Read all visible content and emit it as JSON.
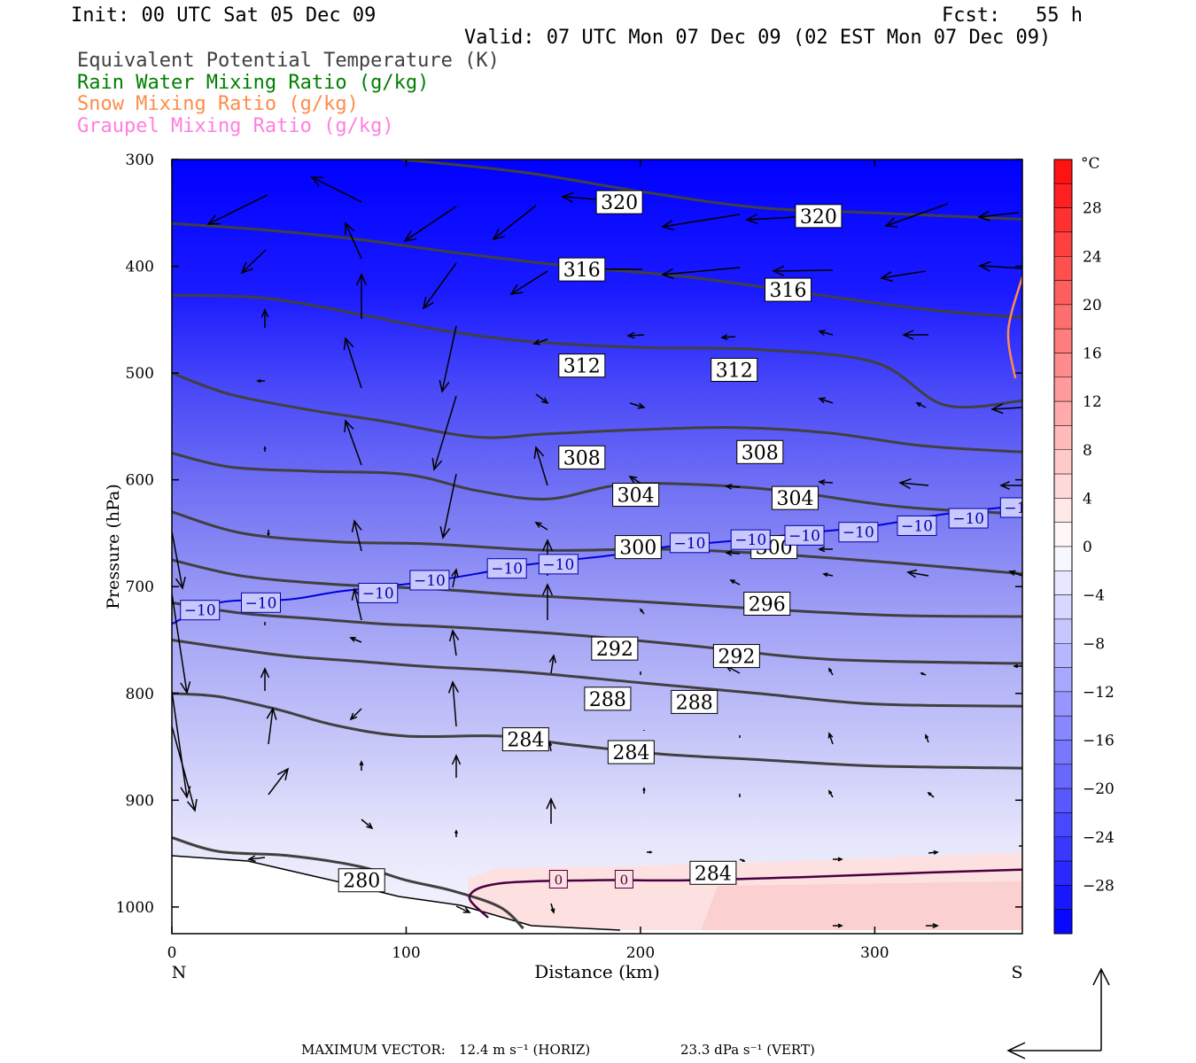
{
  "header": {
    "init": "Init: 00 UTC Sat 05 Dec 09",
    "fcst": "Fcst:   55 h",
    "valid": "Valid: 07 UTC Mon 07 Dec 09 (02 EST Mon 07 Dec 09)"
  },
  "legend": [
    {
      "label": "Equivalent Potential Temperature (K)",
      "color": "#404040"
    },
    {
      "label": "Rain Water Mixing Ratio (g/kg)",
      "color": "#008000"
    },
    {
      "label": "Snow Mixing Ratio (g/kg)",
      "color": "#ff8c4a"
    },
    {
      "label": "Graupel Mixing Ratio (g/kg)",
      "color": "#ff7fe0"
    }
  ],
  "footer": {
    "max_vector_label": "MAXIMUM VECTOR:",
    "horiz": "12.4 m s⁻¹ (HORIZ)",
    "vert": "23.3 dPa s⁻¹ (VERT)"
  },
  "chart_data": {
    "type": "contour",
    "xlabel": "Distance (km)",
    "ylabel": "Pressure (hPa)",
    "xlim": [
      0,
      363
    ],
    "ylim": [
      300,
      1025
    ],
    "x_ticks": [
      "0",
      "100",
      "200",
      "300"
    ],
    "y_ticks": [
      "300",
      "400",
      "500",
      "600",
      "700",
      "800",
      "900",
      "1000"
    ],
    "x_end_labels": {
      "left": "N",
      "right": "S"
    },
    "colorbar": {
      "unit": "°C",
      "ticks": [
        "28",
        "24",
        "20",
        "16",
        "12",
        "8",
        "4",
        "0",
        "−4",
        "−8",
        "−12",
        "−16",
        "−20",
        "−24",
        "−28"
      ],
      "range": [
        -32,
        32
      ]
    },
    "theta_e_contours": [
      {
        "value": 280,
        "labels": [
          [
            81,
            975
          ]
        ],
        "points": [
          [
            0,
            935
          ],
          [
            20,
            948
          ],
          [
            50,
            952
          ],
          [
            80,
            962
          ],
          [
            100,
            975
          ],
          [
            120,
            985
          ],
          [
            140,
            1000
          ],
          [
            150,
            1020
          ]
        ]
      },
      {
        "value": 284,
        "labels": [
          [
            151,
            843
          ],
          [
            196,
            855
          ],
          [
            231,
            968
          ]
        ],
        "points": [
          [
            0,
            800
          ],
          [
            20,
            803
          ],
          [
            45,
            815
          ],
          [
            70,
            830
          ],
          [
            100,
            840
          ],
          [
            140,
            840
          ],
          [
            170,
            848
          ],
          [
            210,
            857
          ],
          [
            250,
            862
          ],
          [
            300,
            868
          ],
          [
            363,
            870
          ]
        ]
      },
      {
        "value": 288,
        "labels": [
          [
            186,
            805
          ],
          [
            223,
            808
          ]
        ],
        "points": [
          [
            0,
            750
          ],
          [
            25,
            758
          ],
          [
            50,
            765
          ],
          [
            80,
            770
          ],
          [
            110,
            775
          ],
          [
            150,
            780
          ],
          [
            200,
            790
          ],
          [
            250,
            800
          ],
          [
            300,
            810
          ],
          [
            363,
            812
          ]
        ]
      },
      {
        "value": 292,
        "labels": [
          [
            189,
            758
          ],
          [
            241,
            765
          ]
        ],
        "points": [
          [
            0,
            715
          ],
          [
            30,
            725
          ],
          [
            60,
            730
          ],
          [
            90,
            735
          ],
          [
            120,
            738
          ],
          [
            170,
            745
          ],
          [
            220,
            755
          ],
          [
            280,
            768
          ],
          [
            363,
            772
          ]
        ]
      },
      {
        "value": 296,
        "labels": [
          [
            254,
            716
          ]
        ],
        "points": [
          [
            0,
            675
          ],
          [
            30,
            690
          ],
          [
            70,
            698
          ],
          [
            110,
            702
          ],
          [
            150,
            708
          ],
          [
            200,
            714
          ],
          [
            260,
            722
          ],
          [
            310,
            727
          ],
          [
            363,
            728
          ]
        ]
      },
      {
        "value": 300,
        "labels": [
          [
            199,
            663
          ],
          [
            257,
            663
          ]
        ],
        "points": [
          [
            0,
            630
          ],
          [
            30,
            650
          ],
          [
            70,
            658
          ],
          [
            110,
            660
          ],
          [
            160,
            666
          ],
          [
            210,
            665
          ],
          [
            260,
            670
          ],
          [
            310,
            678
          ],
          [
            363,
            688
          ]
        ]
      },
      {
        "value": 304,
        "labels": [
          [
            198,
            614
          ],
          [
            266,
            617
          ]
        ],
        "points": [
          [
            0,
            575
          ],
          [
            25,
            588
          ],
          [
            60,
            592
          ],
          [
            100,
            595
          ],
          [
            130,
            610
          ],
          [
            160,
            618
          ],
          [
            190,
            605
          ],
          [
            220,
            604
          ],
          [
            260,
            610
          ],
          [
            310,
            625
          ],
          [
            363,
            632
          ]
        ]
      },
      {
        "value": 308,
        "labels": [
          [
            175,
            579
          ],
          [
            251,
            574
          ]
        ],
        "points": [
          [
            0,
            500
          ],
          [
            25,
            520
          ],
          [
            60,
            535
          ],
          [
            90,
            545
          ],
          [
            130,
            560
          ],
          [
            160,
            557
          ],
          [
            200,
            553
          ],
          [
            240,
            551
          ],
          [
            280,
            556
          ],
          [
            320,
            568
          ],
          [
            363,
            574
          ]
        ]
      },
      {
        "value": 312,
        "labels": [
          [
            175,
            493
          ],
          [
            240,
            497
          ]
        ],
        "points": [
          [
            0,
            427
          ],
          [
            40,
            430
          ],
          [
            80,
            445
          ],
          [
            110,
            458
          ],
          [
            150,
            470
          ],
          [
            200,
            476
          ],
          [
            250,
            478
          ],
          [
            300,
            490
          ],
          [
            330,
            530
          ],
          [
            363,
            526
          ]
        ]
      },
      {
        "value": 316,
        "labels": [
          [
            175,
            403
          ],
          [
            263,
            422
          ]
        ],
        "points": [
          [
            0,
            360
          ],
          [
            40,
            366
          ],
          [
            80,
            375
          ],
          [
            120,
            387
          ],
          [
            170,
            400
          ],
          [
            220,
            410
          ],
          [
            270,
            425
          ],
          [
            320,
            440
          ],
          [
            363,
            448
          ]
        ]
      },
      {
        "value": 320,
        "labels": [
          [
            191,
            340
          ],
          [
            276,
            353
          ]
        ],
        "points": [
          [
            98,
            300
          ],
          [
            150,
            312
          ],
          [
            200,
            330
          ],
          [
            250,
            345
          ],
          [
            300,
            350
          ],
          [
            363,
            356
          ]
        ]
      }
    ],
    "isotherm_minus10": {
      "value": -10,
      "labels": [
        [
          12,
          722
        ],
        [
          38,
          715
        ],
        [
          88,
          706
        ],
        [
          110,
          694
        ],
        [
          143,
          683
        ],
        [
          165,
          679
        ],
        [
          221,
          659
        ],
        [
          247,
          656
        ],
        [
          270,
          652
        ],
        [
          293,
          649
        ],
        [
          318,
          643
        ],
        [
          340,
          636
        ],
        [
          362,
          626
        ]
      ],
      "points": [
        [
          0,
          735
        ],
        [
          20,
          715
        ],
        [
          50,
          712
        ],
        [
          70,
          705
        ],
        [
          90,
          700
        ],
        [
          110,
          695
        ],
        [
          130,
          688
        ],
        [
          150,
          680
        ],
        [
          170,
          675
        ],
        [
          190,
          670
        ],
        [
          210,
          663
        ],
        [
          240,
          657
        ],
        [
          270,
          650
        ],
        [
          300,
          643
        ],
        [
          330,
          632
        ],
        [
          363,
          624
        ]
      ]
    },
    "isotherm_zero": {
      "value": 0,
      "labels": [
        [
          165,
          974
        ],
        [
          193,
          974
        ]
      ],
      "points": [
        [
          135,
          1010
        ],
        [
          127,
          990
        ],
        [
          140,
          978
        ],
        [
          180,
          975
        ],
        [
          220,
          975
        ],
        [
          270,
          972
        ],
        [
          320,
          968
        ],
        [
          363,
          965
        ]
      ]
    },
    "snow_mixing_ratio": {
      "points": [
        [
          363,
          410
        ],
        [
          357,
          460
        ],
        [
          360,
          505
        ]
      ]
    }
  }
}
